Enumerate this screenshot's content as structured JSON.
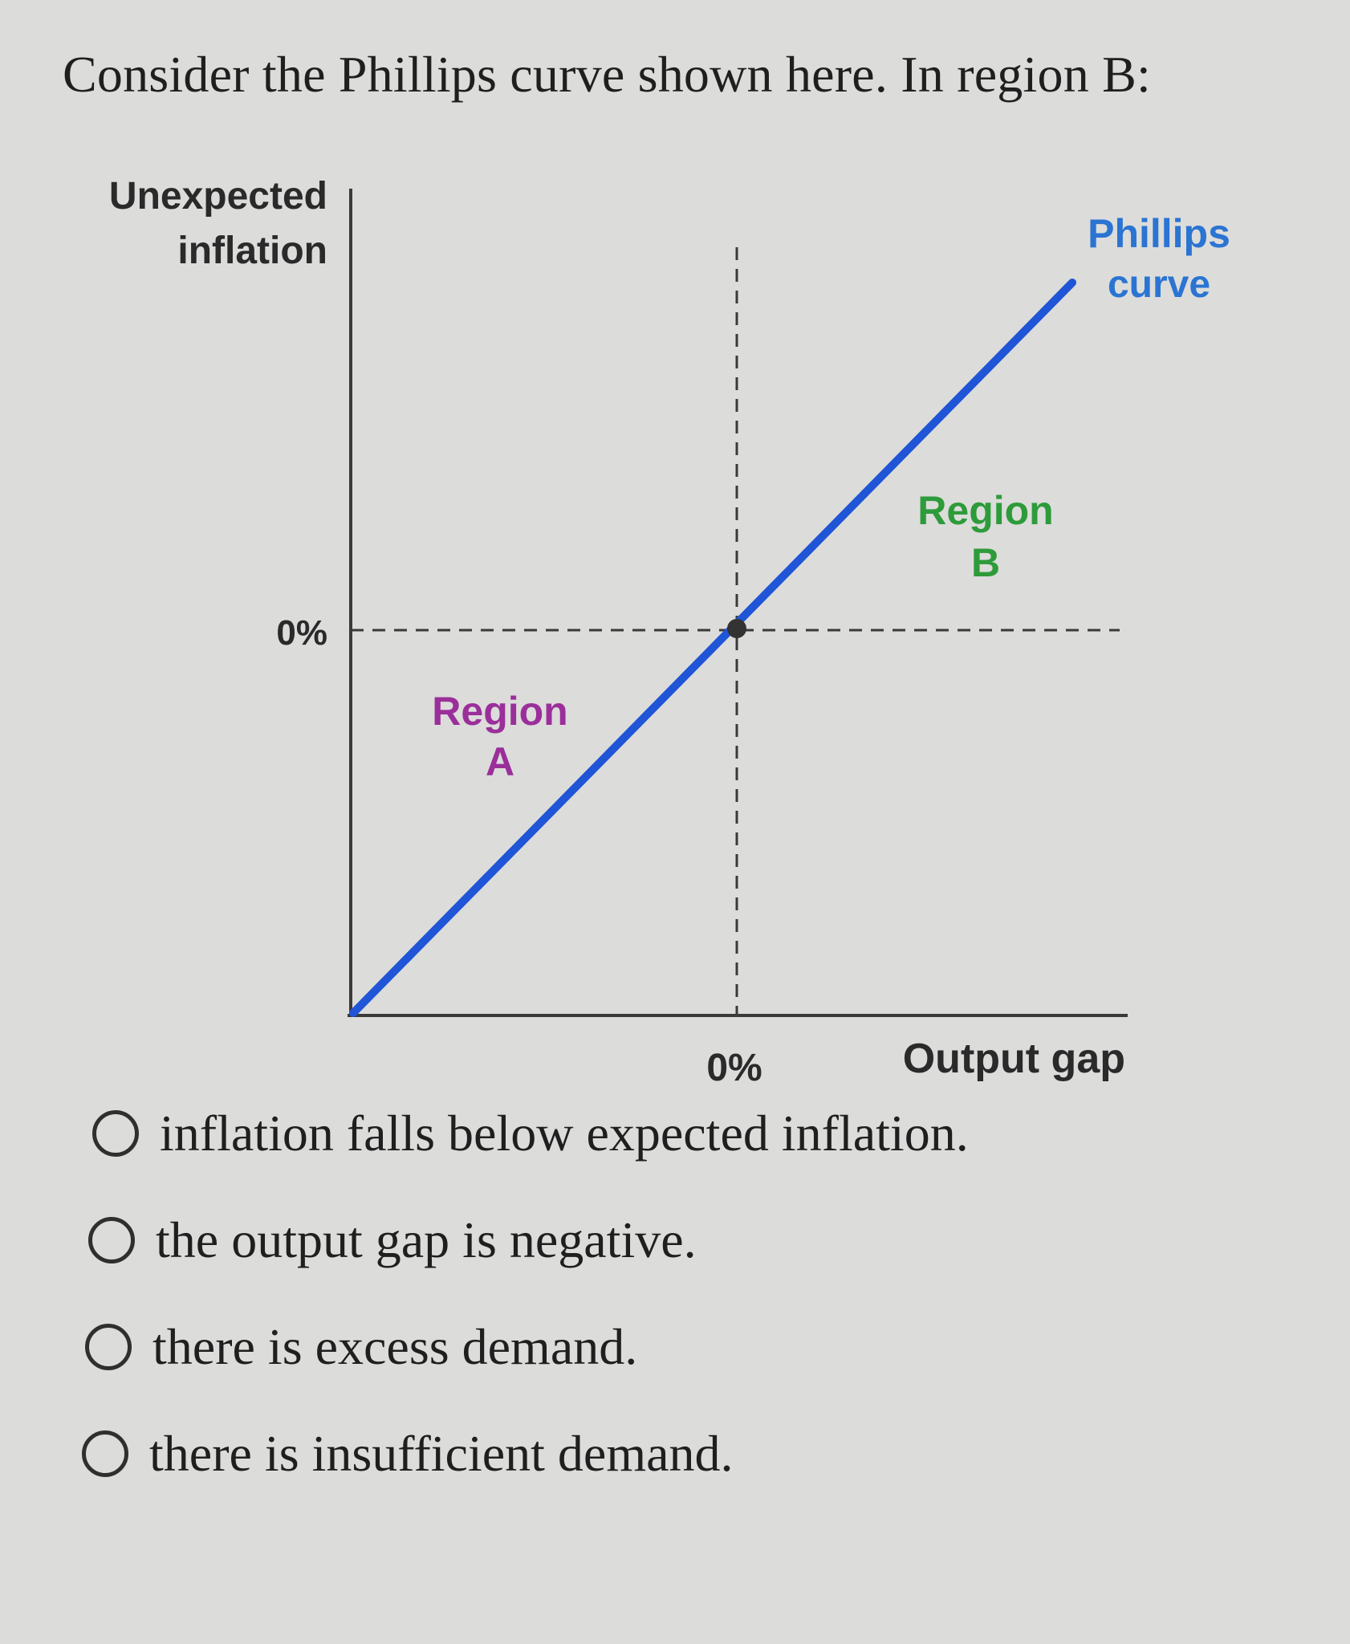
{
  "question": "Consider the Phillips curve shown here. In region B:",
  "chart_data": {
    "type": "line",
    "ylabel": [
      "Unexpected",
      "inflation"
    ],
    "xlabel": "Output gap",
    "x_zero_label": "0%",
    "y_zero_label": "0%",
    "series": [
      {
        "name": "Phillips curve",
        "name_lines": [
          "Phillips",
          "curve"
        ],
        "x": [
          -1,
          1
        ],
        "y": [
          -1,
          1
        ]
      }
    ],
    "point": {
      "x": 0,
      "y": 0
    },
    "regions": [
      {
        "label": "Region",
        "letter": "A",
        "color": "#9b2f9a"
      },
      {
        "label": "Region",
        "letter": "B",
        "color": "#2e9b3a"
      }
    ],
    "colors": {
      "curve": "#1f55d6",
      "curve_label": "#2a74d2",
      "axis": "#3a3a3a"
    }
  },
  "options": [
    "inflation falls below expected inflation.",
    "the output gap is negative.",
    "there is excess demand.",
    "there is insufficient demand."
  ]
}
